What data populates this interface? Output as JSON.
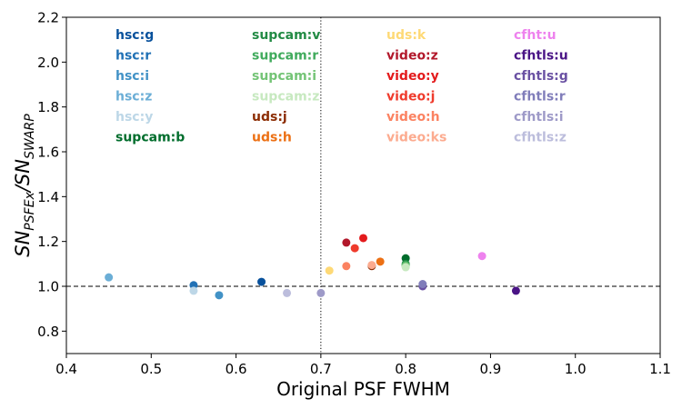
{
  "chart_data": {
    "type": "scatter",
    "title": "",
    "xlabel": "Original PSF FWHM",
    "ylabel": {
      "parts": [
        {
          "t": "SN",
          "sub": false
        },
        {
          "t": "PSFEx",
          "sub": true
        },
        {
          "t": "/SN",
          "sub": false
        },
        {
          "t": "SWARP",
          "sub": true
        }
      ]
    },
    "xlim": [
      0.4,
      1.1
    ],
    "ylim": [
      0.7,
      2.2
    ],
    "xticks": [
      0.4,
      0.5,
      0.6,
      0.7,
      0.8,
      0.9,
      1.0,
      1.1
    ],
    "xtick_labels": [
      "0.4",
      "0.5",
      "0.6",
      "0.7",
      "0.8",
      "0.9",
      "1.0",
      "1.1"
    ],
    "yticks": [
      0.8,
      1.0,
      1.2,
      1.4,
      1.6,
      1.8,
      2.0,
      2.2
    ],
    "ytick_labels": [
      "0.8",
      "1.0",
      "1.2",
      "1.4",
      "1.6",
      "1.8",
      "2.0",
      "2.2"
    ],
    "grid": false,
    "reference_lines": [
      {
        "orientation": "horizontal",
        "value": 1.0,
        "style": "dashed",
        "color": "#000000"
      },
      {
        "orientation": "vertical",
        "value": 0.7,
        "style": "dotted",
        "color": "#000000"
      }
    ],
    "legend_placement": "top, four columns of colored text labels",
    "series": [
      {
        "name": "hsc:g",
        "color": "#08519c",
        "x": 0.63,
        "y": 1.02
      },
      {
        "name": "hsc:r",
        "color": "#2171b5",
        "x": 0.55,
        "y": 1.005
      },
      {
        "name": "hsc:i",
        "color": "#4292c6",
        "x": 0.58,
        "y": 0.96
      },
      {
        "name": "hsc:z",
        "color": "#6baed6",
        "x": 0.45,
        "y": 1.04
      },
      {
        "name": "hsc:y",
        "color": "#bdd7e7",
        "x": 0.55,
        "y": 0.98
      },
      {
        "name": "supcam:b",
        "color": "#006d2c",
        "x": 0.8,
        "y": 1.125
      },
      {
        "name": "supcam:v",
        "color": "#238b45",
        "x": 0.8,
        "y": 1.1
      },
      {
        "name": "supcam:r",
        "color": "#41ab5d",
        "x": 0.8,
        "y": 1.095
      },
      {
        "name": "supcam:i",
        "color": "#74c476",
        "x": 0.8,
        "y": 1.09
      },
      {
        "name": "supcam:z",
        "color": "#c7e9c0",
        "x": 0.8,
        "y": 1.085
      },
      {
        "name": "uds:j",
        "color": "#8c2d04",
        "x": 0.76,
        "y": 1.09
      },
      {
        "name": "uds:h",
        "color": "#ec7014",
        "x": 0.77,
        "y": 1.11
      },
      {
        "name": "uds:k",
        "color": "#fed976",
        "x": 0.71,
        "y": 1.07
      },
      {
        "name": "video:z",
        "color": "#b2182b",
        "x": 0.73,
        "y": 1.195
      },
      {
        "name": "video:y",
        "color": "#e31a1c",
        "x": 0.75,
        "y": 1.215
      },
      {
        "name": "video:j",
        "color": "#ef3b2c",
        "x": 0.74,
        "y": 1.17
      },
      {
        "name": "video:h",
        "color": "#fb8261",
        "x": 0.73,
        "y": 1.09
      },
      {
        "name": "video:ks",
        "color": "#fcab8f",
        "x": 0.76,
        "y": 1.095
      },
      {
        "name": "cfht:u",
        "color": "#ee82ee",
        "x": 0.89,
        "y": 1.135
      },
      {
        "name": "cfhtls:u",
        "color": "#4a1486",
        "x": 0.93,
        "y": 0.98
      },
      {
        "name": "cfhtls:g",
        "color": "#6a51a3",
        "x": 0.82,
        "y": 1.0
      },
      {
        "name": "cfhtls:r",
        "color": "#807dba",
        "x": 0.82,
        "y": 1.01
      },
      {
        "name": "cfhtls:i",
        "color": "#9e9ac8",
        "x": 0.7,
        "y": 0.97
      },
      {
        "name": "cfhtls:z",
        "color": "#bcbddc",
        "x": 0.66,
        "y": 0.97
      }
    ],
    "legend_columns": [
      [
        "hsc:g",
        "hsc:r",
        "hsc:i",
        "hsc:z",
        "hsc:y",
        "supcam:b"
      ],
      [
        "supcam:v",
        "supcam:r",
        "supcam:i",
        "supcam:z",
        "uds:j",
        "uds:h"
      ],
      [
        "uds:k",
        "video:z",
        "video:y",
        "video:j",
        "video:h",
        "video:ks"
      ],
      [
        "cfht:u",
        "cfhtls:u",
        "cfhtls:g",
        "cfhtls:r",
        "cfhtls:i",
        "cfhtls:z"
      ]
    ]
  }
}
